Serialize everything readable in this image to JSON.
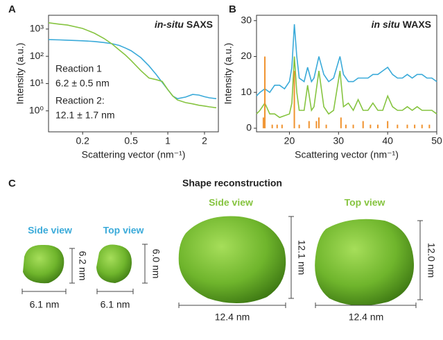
{
  "panels": [
    "A",
    "B",
    "C"
  ],
  "chart_data": [
    {
      "type": "line",
      "title": [
        "in-situ",
        "SAXS"
      ],
      "x_label": "Scattering vector (nm⁻¹)",
      "y_label": "Intensity (a.u.)",
      "x_scale": "log",
      "y_scale": "log",
      "xlim": [
        0.105,
        2.6
      ],
      "ylim": [
        0.17,
        3200
      ],
      "xticks": [
        0.2,
        0.5,
        1,
        2
      ],
      "yticks": [
        {
          "value": 1,
          "label": "10⁰"
        },
        {
          "value": 10,
          "label": "10¹"
        },
        {
          "value": 100,
          "label": "10²"
        },
        {
          "value": 1000,
          "label": "10³"
        }
      ],
      "x": [
        0.105,
        0.13,
        0.15,
        0.2,
        0.25,
        0.3,
        0.35,
        0.4,
        0.45,
        0.5,
        0.6,
        0.7,
        0.8,
        0.9,
        1.0,
        1.1,
        1.2,
        1.4,
        1.6,
        1.8,
        2.0,
        2.2,
        2.5
      ],
      "series": [
        {
          "name": "Reaction 1",
          "annotation": "6.2 ± 0.5 nm",
          "color": "#3aaad9",
          "values": [
            410,
            400,
            390,
            370,
            350,
            320,
            290,
            250,
            200,
            160,
            90,
            45,
            22,
            11,
            6,
            3.5,
            2.8,
            3.2,
            4,
            3.8,
            3.3,
            3,
            2.8
          ]
        },
        {
          "name": "Reaction 2:",
          "annotation": "12.1 ± 1.7 nm",
          "color": "#86c440",
          "values": [
            1700,
            1500,
            1400,
            1050,
            700,
            450,
            280,
            170,
            110,
            70,
            30,
            16,
            14,
            12,
            6,
            3.5,
            2.5,
            2,
            1.8,
            1.6,
            1.5,
            1.4,
            1.3
          ]
        }
      ]
    },
    {
      "type": "line",
      "title": [
        "in situ",
        "WAXS"
      ],
      "x_label": "Scattering vector (nm⁻¹)",
      "y_label": "Intensity (a.u.)",
      "x_scale": "linear",
      "y_scale": "linear",
      "xlim": [
        13.3,
        50
      ],
      "ylim": [
        -1,
        31.5
      ],
      "xticks": [
        20,
        30,
        40,
        50
      ],
      "yticks": [
        0,
        10,
        20,
        30
      ],
      "x": [
        13.3,
        14,
        15,
        16,
        17,
        18,
        19,
        20,
        20.5,
        21,
        21.5,
        22,
        23,
        23.7,
        24.5,
        25,
        26,
        27,
        28,
        29,
        30.3,
        31,
        32,
        33,
        34,
        35,
        36,
        37,
        38,
        39,
        40,
        41,
        42,
        43,
        44,
        45,
        46,
        47,
        48,
        49,
        50
      ],
      "series": [
        {
          "color": "#3aaad9",
          "values": [
            9,
            10,
            11,
            10,
            12,
            12,
            11,
            13,
            17,
            29,
            20,
            14,
            13,
            17,
            13,
            14,
            20,
            15,
            13,
            14,
            20,
            15,
            13,
            13,
            14,
            14,
            14,
            15,
            15,
            16,
            17,
            15,
            14,
            14,
            15,
            14,
            15,
            15,
            14,
            14,
            13
          ]
        },
        {
          "color": "#86c440",
          "values": [
            4,
            5,
            7,
            4,
            4,
            3,
            3.5,
            4,
            7,
            20,
            10,
            5,
            5,
            12,
            5,
            6,
            16,
            6,
            4,
            5,
            16,
            6,
            7,
            5,
            8,
            5,
            5,
            7,
            5,
            5,
            9,
            6,
            5,
            5,
            6,
            5,
            6,
            5,
            5,
            5,
            4
          ]
        },
        {
          "color": "#f0922e",
          "style": "stem",
          "x": [
            14.7,
            15,
            16.5,
            17.5,
            18.5,
            21,
            22,
            24,
            25.5,
            26,
            27.5,
            30.5,
            31.5,
            33,
            35,
            36.5,
            38,
            40,
            42,
            44,
            45.5,
            47,
            48.5
          ],
          "values": [
            3,
            20,
            1,
            1,
            1,
            16,
            1,
            2,
            2,
            3,
            1,
            3,
            1,
            1,
            2,
            1,
            1,
            2,
            1,
            1,
            1,
            1,
            1
          ]
        }
      ]
    }
  ],
  "reconstruction": {
    "title": "Shape reconstruction",
    "views": [
      {
        "label": "Side view",
        "height": "6.2 nm",
        "width": "6.1 nm"
      },
      {
        "label": "Top view",
        "height": "6.0 nm",
        "width": "6.1 nm"
      },
      {
        "label": "Side view",
        "height": "12.1 nm",
        "width": "12.4 nm"
      },
      {
        "label": "Top view",
        "height": "12.0 nm",
        "width": "12.4 nm"
      }
    ]
  }
}
